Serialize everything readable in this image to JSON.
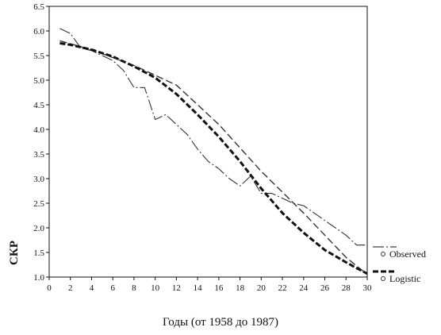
{
  "chart_data": {
    "type": "line",
    "xlabel": "Годы (от 1958 до 1987)",
    "ylabel": "СКР",
    "xlim": [
      0,
      30
    ],
    "ylim": [
      1.0,
      6.5
    ],
    "xticks": [
      0,
      2,
      4,
      6,
      8,
      10,
      12,
      14,
      16,
      18,
      20,
      22,
      24,
      26,
      28,
      30
    ],
    "yticks": [
      1.0,
      1.5,
      2.0,
      2.5,
      3.0,
      3.5,
      4.0,
      4.5,
      5.0,
      5.5,
      6.0,
      6.5
    ],
    "legend_position": "right",
    "series": [
      {
        "name": "Observed",
        "color": "#333333",
        "style": "dotted",
        "x": [
          1,
          2,
          3,
          4,
          5,
          6,
          7,
          8,
          9,
          10,
          11,
          12,
          13,
          14,
          15,
          16,
          17,
          18,
          19,
          20,
          21,
          22,
          23,
          24,
          25,
          26,
          27,
          28,
          29,
          30
        ],
        "y": [
          6.05,
          5.95,
          5.65,
          5.6,
          5.5,
          5.4,
          5.2,
          4.85,
          4.85,
          4.2,
          4.3,
          4.1,
          3.9,
          3.6,
          3.35,
          3.2,
          3.0,
          2.85,
          3.05,
          2.7,
          2.7,
          2.6,
          2.5,
          2.45,
          2.3,
          2.15,
          2.0,
          1.85,
          1.65,
          1.65
        ]
      },
      {
        "name": "",
        "color": "#333333",
        "style": "dashed",
        "x": [
          1,
          4,
          8,
          12,
          16,
          20,
          24,
          28,
          30
        ],
        "y": [
          5.8,
          5.62,
          5.3,
          4.9,
          4.1,
          3.15,
          2.3,
          1.4,
          1.05
        ]
      },
      {
        "name": "Logistic",
        "color": "#111111",
        "style": "dashed-bold",
        "x": [
          1,
          2,
          4,
          6,
          8,
          10,
          12,
          14,
          16,
          18,
          20,
          22,
          24,
          26,
          28,
          29,
          30
        ],
        "y": [
          5.75,
          5.72,
          5.62,
          5.48,
          5.28,
          5.05,
          4.72,
          4.3,
          3.85,
          3.35,
          2.8,
          2.3,
          1.9,
          1.55,
          1.3,
          1.18,
          1.07
        ]
      }
    ],
    "legend": [
      {
        "label": "Observed"
      },
      {
        "label": "Logistic"
      }
    ]
  }
}
